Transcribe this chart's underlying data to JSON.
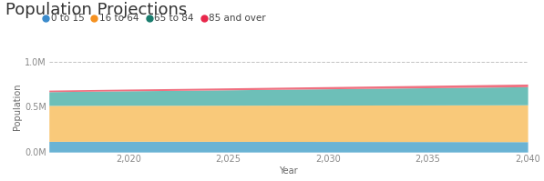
{
  "title": "Population Projections",
  "xlabel": "Year",
  "ylabel": "Population",
  "years": [
    2016,
    2017,
    2018,
    2019,
    2020,
    2021,
    2022,
    2023,
    2024,
    2025,
    2026,
    2027,
    2028,
    2029,
    2030,
    2031,
    2032,
    2033,
    2034,
    2035,
    2036,
    2037,
    2038,
    2039,
    2040
  ],
  "age_0_15": [
    118000,
    118200,
    118400,
    118600,
    118800,
    118600,
    118400,
    118200,
    118000,
    117800,
    117600,
    117400,
    117200,
    117000,
    116800,
    116600,
    116400,
    116200,
    116000,
    115800,
    115600,
    115400,
    115200,
    115000,
    114800
  ],
  "age_16_64": [
    397000,
    397200,
    397400,
    397600,
    397800,
    398000,
    398200,
    398500,
    399000,
    399500,
    400000,
    400500,
    401000,
    401500,
    402000,
    402500,
    403000,
    403500,
    404000,
    404500,
    405000,
    405500,
    406000,
    406500,
    407000
  ],
  "age_65_84": [
    152000,
    154000,
    156000,
    158000,
    160000,
    162000,
    164000,
    166000,
    168000,
    170000,
    172000,
    174000,
    176000,
    178000,
    180000,
    182000,
    184000,
    186000,
    188000,
    190000,
    192000,
    194000,
    196000,
    198000,
    200000
  ],
  "age_85_over": [
    17000,
    17500,
    18000,
    18500,
    19000,
    19500,
    20000,
    20500,
    21000,
    21500,
    22000,
    22500,
    23000,
    23500,
    24000,
    24500,
    25000,
    25500,
    26000,
    26500,
    27000,
    27500,
    28000,
    28500,
    29000
  ],
  "color_0_15": "#6ab3d4",
  "color_16_64": "#f9c97a",
  "color_65_84": "#6dbfb8",
  "color_85_over": "#f07080",
  "legend_dot_colors": [
    "#3b8bcc",
    "#f59120",
    "#1a7d6e",
    "#e8274b"
  ],
  "background_color": "#ffffff",
  "grid_color": "#bbbbbb",
  "ylim": [
    0,
    1000000
  ],
  "yticks": [
    0,
    500000,
    1000000
  ],
  "ytick_labels": [
    "0.0M",
    "0.5M",
    "1.0M"
  ],
  "xticks": [
    2020,
    2025,
    2030,
    2035,
    2040
  ],
  "xtick_labels": [
    "2,020",
    "2,025",
    "2,030",
    "2,035",
    "2,040"
  ],
  "legend_labels": [
    "0 to 15",
    "16 to 64",
    "65 to 84",
    "85 and over"
  ],
  "title_fontsize": 13,
  "legend_fontsize": 7.5,
  "axis_label_fontsize": 7,
  "tick_fontsize": 7
}
